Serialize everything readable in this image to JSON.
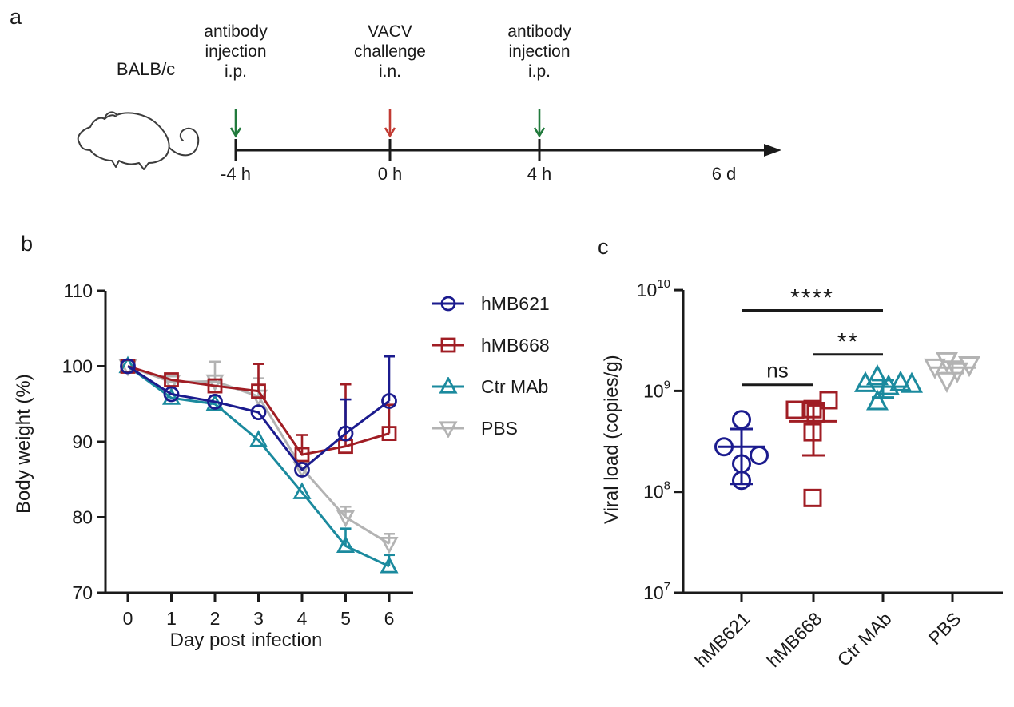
{
  "letters": {
    "a": "a",
    "b": "b",
    "c": "c"
  },
  "colors": {
    "navy": "#1b1b8e",
    "dark_red": "#a01d24",
    "teal": "#1b8a9e",
    "gray": "#b3b3b3",
    "green_arrow": "#217a3c",
    "red_arrow": "#c23b33",
    "axis": "#1a1a1a"
  },
  "panel_a": {
    "strain": "BALB/c",
    "mouse_icon": "mouse-outline-drawing",
    "events": [
      {
        "label": "antibody\ninjection\ni.p.",
        "time": "-4 h",
        "arrow_color": "#217a3c"
      },
      {
        "label": "VACV\nchallenge\ni.n.",
        "time": "0 h",
        "arrow_color": "#c23b33"
      },
      {
        "label": "antibody\ninjection\ni.p.",
        "time": "4 h",
        "arrow_color": "#217a3c"
      }
    ],
    "end_label": "6 d"
  },
  "chart_data": [
    {
      "id": "chart_b",
      "type": "line",
      "xlabel": "Day post infection",
      "ylabel": "Body weight (%)",
      "x": [
        0,
        1,
        2,
        3,
        4,
        5,
        6
      ],
      "ylim": [
        70,
        110
      ],
      "yticks": [
        70,
        80,
        90,
        100,
        110
      ],
      "legend_position": "right",
      "series": [
        {
          "name": "hMB621",
          "marker": "circle",
          "color": "#1b1b8e",
          "values": [
            100,
            96.3,
            95.3,
            93.9,
            86.3,
            91.1,
            95.4
          ],
          "err_up": [
            0,
            0,
            0,
            0,
            0,
            4.5,
            5.9
          ]
        },
        {
          "name": "hMB668",
          "marker": "square",
          "color": "#a01d24",
          "values": [
            100,
            98.2,
            97.4,
            96.7,
            88.3,
            89.4,
            91.1
          ],
          "err_up": [
            0,
            0,
            0,
            3.6,
            2.6,
            8.2,
            3.8
          ]
        },
        {
          "name": "Ctr MAb",
          "marker": "triangle-up",
          "color": "#1b8a9e",
          "values": [
            100,
            95.8,
            95.0,
            90.2,
            83.3,
            76.2,
            73.5
          ],
          "err_up": [
            0,
            0,
            0,
            0,
            0,
            2.3,
            1.5
          ]
        },
        {
          "name": "PBS",
          "marker": "triangle-down",
          "color": "#b3b3b3",
          "values": [
            100,
            97.9,
            98.0,
            96.0,
            86.5,
            80.0,
            76.5
          ],
          "err_up": [
            0,
            0,
            2.6,
            2.4,
            0,
            1.4,
            1.3
          ]
        }
      ]
    },
    {
      "id": "chart_c",
      "type": "scatter",
      "ylabel": "Viral load (copies/g)",
      "yscale": "log10",
      "ylim_exponents": [
        7,
        10
      ],
      "yticks_exp": [
        7,
        8,
        9,
        10
      ],
      "groups": [
        {
          "name": "hMB621",
          "marker": "circle",
          "color": "#1b1b8e",
          "points": [
            [
              0,
              520000000.0
            ],
            [
              -22,
              280000000.0
            ],
            [
              22,
              230000000.0
            ],
            [
              0,
              190000000.0
            ],
            [
              0,
              130000000.0
            ]
          ],
          "mean": 280000000.0,
          "err_hi": 420000000.0,
          "err_lo": 120000000.0
        },
        {
          "name": "hMB668",
          "marker": "square",
          "color": "#a01d24",
          "points": [
            [
              -23,
              650000000.0
            ],
            [
              19,
              810000000.0
            ],
            [
              -1,
              660000000.0
            ],
            [
              3,
              600000000.0
            ],
            [
              -1,
              390000000.0
            ],
            [
              -1,
              87000000.0
            ]
          ],
          "mean": 500000000.0,
          "err_hi": 760000000.0,
          "err_lo": 230000000.0
        },
        {
          "name": "Ctr MAb",
          "marker": "triangle-up",
          "color": "#1b8a9e",
          "points": [
            [
              -22,
              1180000000.0
            ],
            [
              -7,
              1380000000.0
            ],
            [
              7,
              1100000000.0
            ],
            [
              22,
              1200000000.0
            ],
            [
              36,
              1160000000.0
            ],
            [
              -7,
              780000000.0
            ]
          ],
          "mean": 1100000000.0,
          "err_hi": 1280000000.0,
          "err_lo": 860000000.0
        },
        {
          "name": "PBS",
          "marker": "triangle-down",
          "color": "#b3b3b3",
          "points": [
            [
              -7,
              2000000000.0
            ],
            [
              -22,
              1730000000.0
            ],
            [
              21,
              1820000000.0
            ],
            [
              6,
              1580000000.0
            ],
            [
              -7,
              1270000000.0
            ]
          ],
          "mean": 1700000000.0,
          "err_hi": 1950000000.0,
          "err_lo": 1500000000.0
        }
      ],
      "comparisons": [
        {
          "a": 0,
          "b": 1,
          "label": "ns",
          "y": 1150000000.0
        },
        {
          "a": 1,
          "b": 2,
          "label": "**",
          "y": 2300000000.0
        },
        {
          "a": 0,
          "b": 2,
          "label": "****",
          "y": 6300000000.0
        }
      ]
    }
  ]
}
